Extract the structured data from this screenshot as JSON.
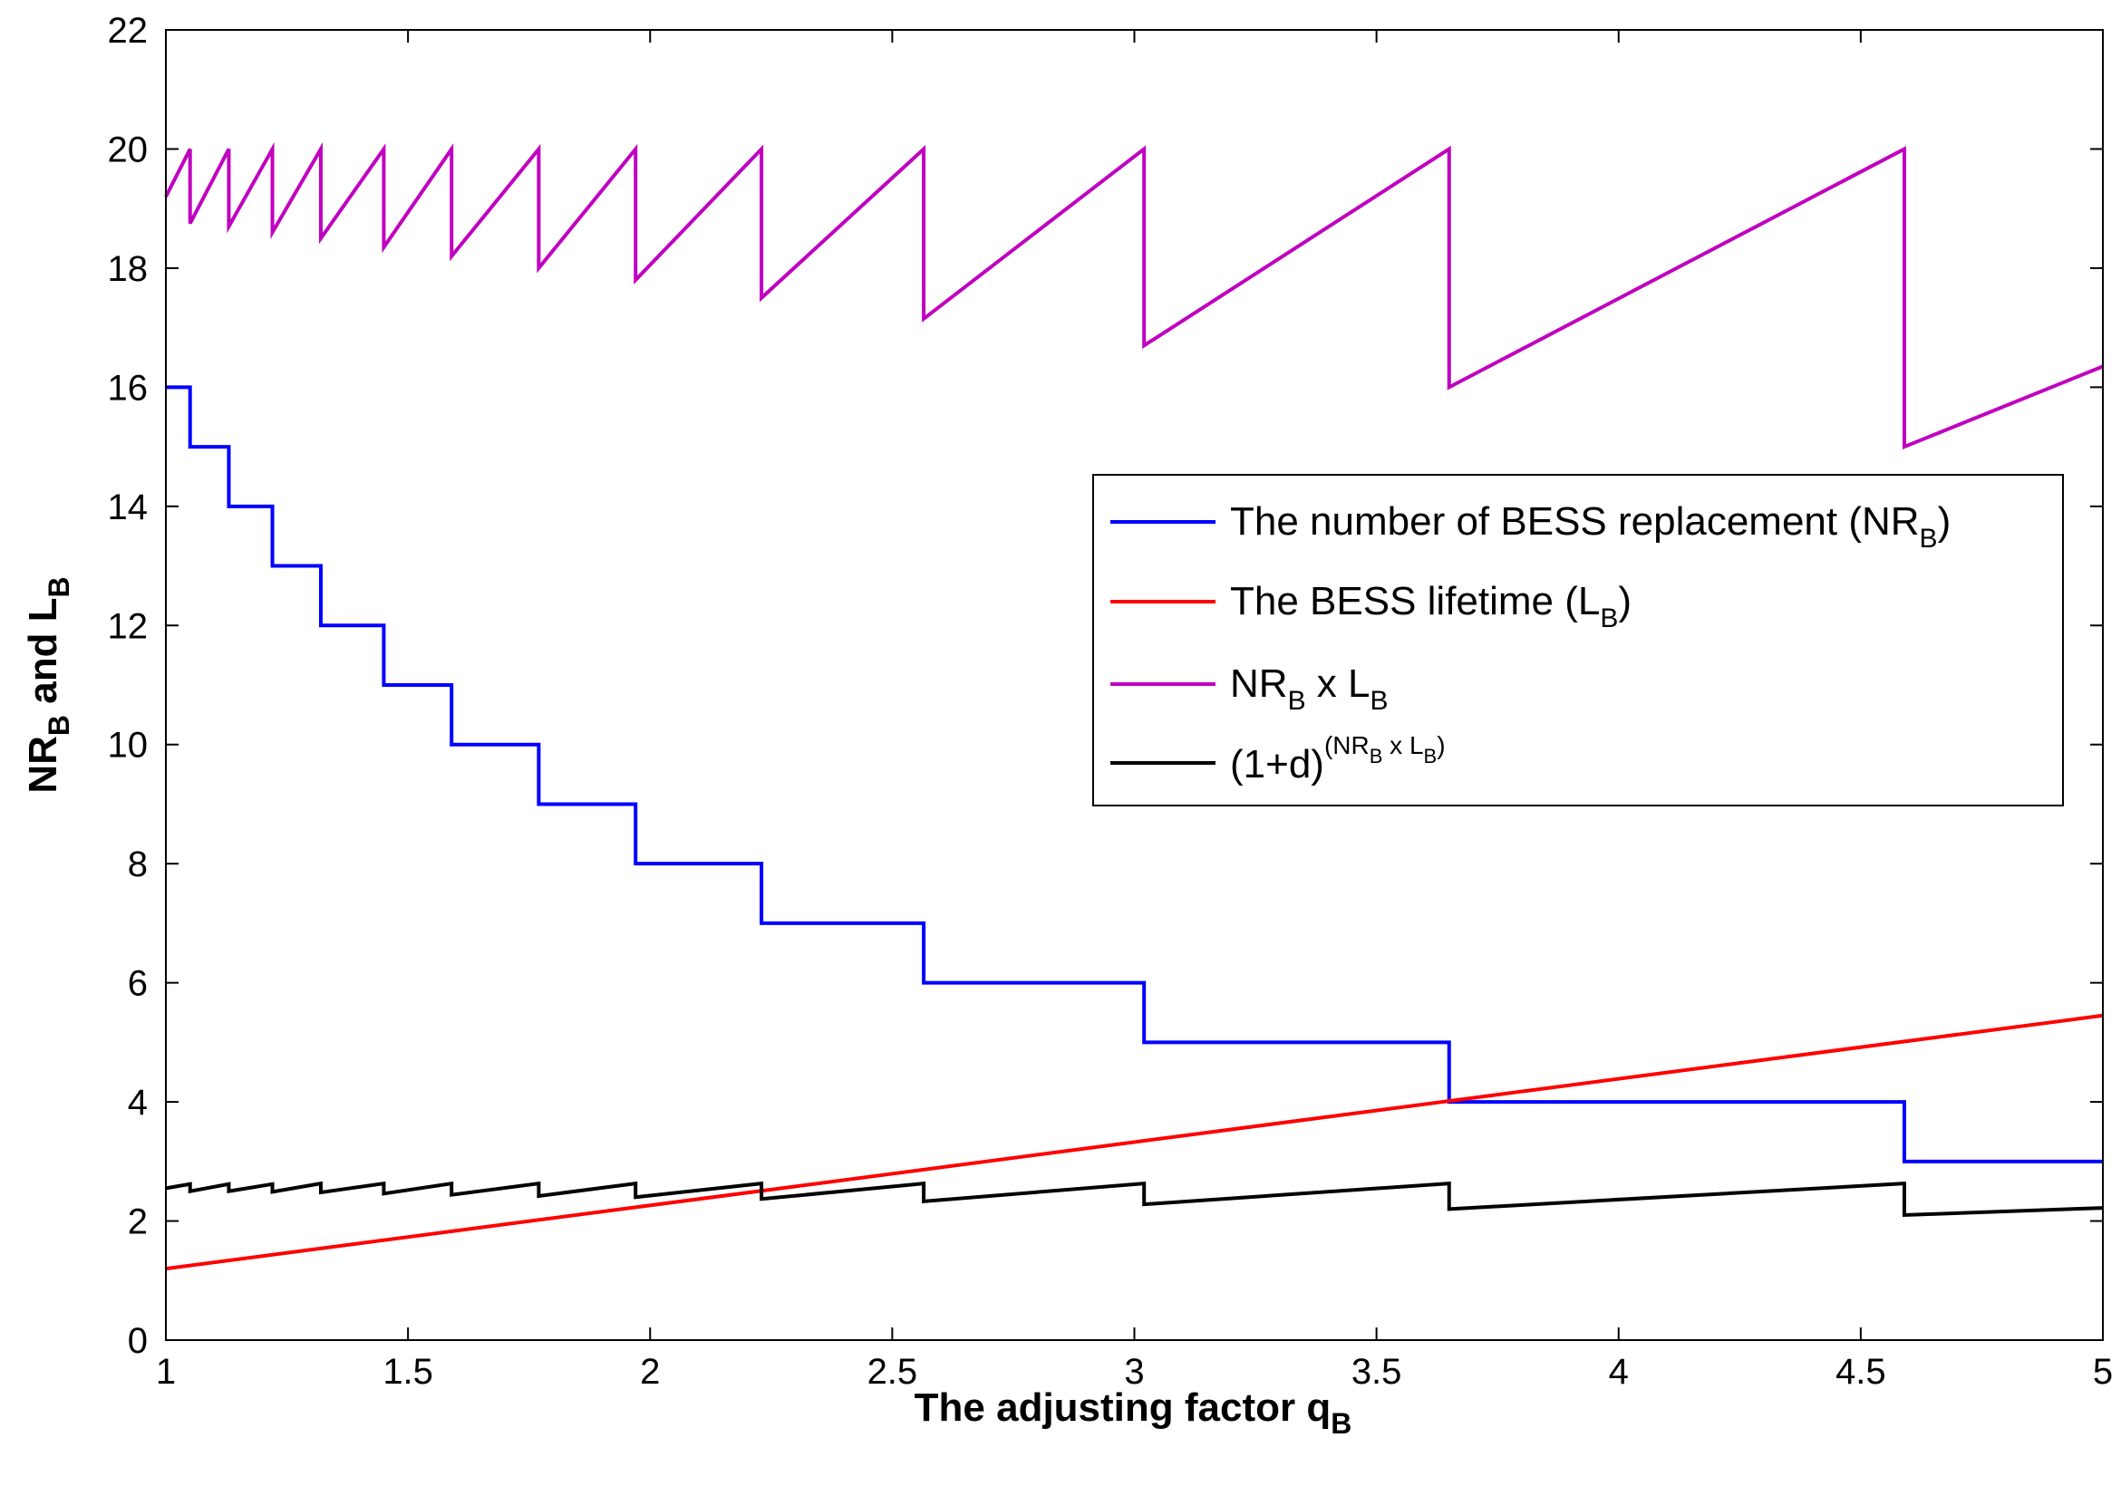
{
  "chart_data": {
    "type": "line",
    "title": "",
    "xlabel": {
      "text": "The adjusting factor q",
      "sub": "B"
    },
    "ylabel": {
      "p1": "NR",
      "s1": "B",
      "p2": " and L",
      "s2": "B"
    },
    "xlim": [
      1,
      5
    ],
    "ylim": [
      0,
      22
    ],
    "xticks": [
      "1",
      "1.5",
      "2",
      "2.5",
      "3",
      "3.5",
      "4",
      "4.5",
      "5"
    ],
    "yticks": [
      "0",
      "2",
      "4",
      "6",
      "8",
      "10",
      "12",
      "14",
      "16",
      "18",
      "20",
      "22"
    ],
    "grid": false,
    "legend_position": "center-right",
    "breakpoints": [
      1.0,
      1.05,
      1.13,
      1.22,
      1.32,
      1.45,
      1.59,
      1.77,
      1.97,
      2.23,
      2.565,
      3.02,
      3.65,
      4.59,
      5.0
    ],
    "series": [
      {
        "name": "The number of BESS replacement (NR_B)",
        "color": "#0000ff",
        "kind": "step",
        "levels": [
          16,
          15,
          14,
          13,
          12,
          11,
          10,
          9,
          8,
          7,
          6,
          5,
          4,
          3
        ]
      },
      {
        "name": "The BESS lifetime (L_B)",
        "color": "#ff0000",
        "kind": "line",
        "x": [
          1,
          5
        ],
        "y": [
          1.2,
          5.45
        ]
      },
      {
        "name": "NR_B x L_B",
        "color": "#c000c0",
        "kind": "sawtooth",
        "segments": [
          {
            "x0": 1.0,
            "y0": 19.2,
            "x1": 1.05,
            "y1": 20.0
          },
          {
            "x0": 1.05,
            "y0": 18.75,
            "x1": 1.13,
            "y1": 20.0
          },
          {
            "x0": 1.13,
            "y0": 18.7,
            "x1": 1.22,
            "y1": 20.0
          },
          {
            "x0": 1.22,
            "y0": 18.6,
            "x1": 1.32,
            "y1": 20.0
          },
          {
            "x0": 1.32,
            "y0": 18.5,
            "x1": 1.45,
            "y1": 20.0
          },
          {
            "x0": 1.45,
            "y0": 18.35,
            "x1": 1.59,
            "y1": 20.0
          },
          {
            "x0": 1.59,
            "y0": 18.2,
            "x1": 1.77,
            "y1": 20.0
          },
          {
            "x0": 1.77,
            "y0": 18.0,
            "x1": 1.97,
            "y1": 20.0
          },
          {
            "x0": 1.97,
            "y0": 17.8,
            "x1": 2.23,
            "y1": 20.0
          },
          {
            "x0": 2.23,
            "y0": 17.5,
            "x1": 2.565,
            "y1": 20.0
          },
          {
            "x0": 2.565,
            "y0": 17.15,
            "x1": 3.02,
            "y1": 20.0
          },
          {
            "x0": 3.02,
            "y0": 16.7,
            "x1": 3.65,
            "y1": 20.0
          },
          {
            "x0": 3.65,
            "y0": 16.0,
            "x1": 4.59,
            "y1": 20.0
          },
          {
            "x0": 4.59,
            "y0": 15.0,
            "x1": 5.0,
            "y1": 16.35
          }
        ]
      },
      {
        "name": "(1+d)^(NR_B x L_B)",
        "color": "#000000",
        "kind": "sawtooth",
        "segments": [
          {
            "x0": 1.0,
            "y0": 2.55,
            "x1": 1.05,
            "y1": 2.62
          },
          {
            "x0": 1.05,
            "y0": 2.5,
            "x1": 1.13,
            "y1": 2.62
          },
          {
            "x0": 1.13,
            "y0": 2.5,
            "x1": 1.22,
            "y1": 2.62
          },
          {
            "x0": 1.22,
            "y0": 2.49,
            "x1": 1.32,
            "y1": 2.63
          },
          {
            "x0": 1.32,
            "y0": 2.48,
            "x1": 1.45,
            "y1": 2.63
          },
          {
            "x0": 1.45,
            "y0": 2.46,
            "x1": 1.59,
            "y1": 2.63
          },
          {
            "x0": 1.59,
            "y0": 2.44,
            "x1": 1.77,
            "y1": 2.63
          },
          {
            "x0": 1.77,
            "y0": 2.42,
            "x1": 1.97,
            "y1": 2.63
          },
          {
            "x0": 1.97,
            "y0": 2.4,
            "x1": 2.23,
            "y1": 2.63
          },
          {
            "x0": 2.23,
            "y0": 2.37,
            "x1": 2.565,
            "y1": 2.63
          },
          {
            "x0": 2.565,
            "y0": 2.33,
            "x1": 3.02,
            "y1": 2.63
          },
          {
            "x0": 3.02,
            "y0": 2.28,
            "x1": 3.65,
            "y1": 2.63
          },
          {
            "x0": 3.65,
            "y0": 2.2,
            "x1": 4.59,
            "y1": 2.63
          },
          {
            "x0": 4.59,
            "y0": 2.1,
            "x1": 5.0,
            "y1": 2.22
          }
        ]
      }
    ],
    "legend": [
      {
        "color": "#0000ff",
        "p1": "The number of BESS replacement (NR",
        "s1": "B",
        "p2": ")"
      },
      {
        "color": "#ff0000",
        "p1": "The BESS lifetime (L",
        "s1": "B",
        "p2": ")"
      },
      {
        "color": "#c000c0",
        "p1": "NR",
        "s1": "B",
        "p2": " x L",
        "s2": "B"
      },
      {
        "color": "#000000",
        "p1": "(1+d)",
        "sup1": "(NR",
        "supsub1": "B",
        "sup2": " x L",
        "supsub2": "B",
        "sup3": ")"
      }
    ]
  }
}
